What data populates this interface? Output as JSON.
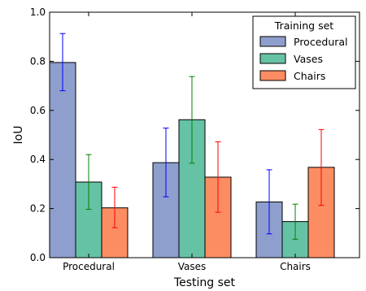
{
  "chart_data": {
    "type": "bar",
    "title": "",
    "xlabel": "Testing set",
    "ylabel": "IoU",
    "ylim": [
      0,
      1.0
    ],
    "yticks": [
      "0.0",
      "0.2",
      "0.4",
      "0.6",
      "0.8",
      "1.0"
    ],
    "categories": [
      "Procedural",
      "Vases",
      "Chairs"
    ],
    "legend": {
      "title": "Training set",
      "placement": "top-right"
    },
    "grid": false,
    "series": [
      {
        "name": "Procedural",
        "color": "#8e9fce",
        "error_color": "#0000ff",
        "values": [
          0.795,
          0.387,
          0.227
        ],
        "err_low": [
          0.68,
          0.248,
          0.097
        ],
        "err_high": [
          0.913,
          0.528,
          0.358
        ]
      },
      {
        "name": "Vases",
        "color": "#66c2a5",
        "error_color": "#008000",
        "values": [
          0.308,
          0.562,
          0.147
        ],
        "err_low": [
          0.197,
          0.385,
          0.075
        ],
        "err_high": [
          0.42,
          0.738,
          0.218
        ]
      },
      {
        "name": "Chairs",
        "color": "#fc8d62",
        "error_color": "#ff0000",
        "values": [
          0.203,
          0.328,
          0.368
        ],
        "err_low": [
          0.122,
          0.185,
          0.213
        ],
        "err_high": [
          0.287,
          0.472,
          0.522
        ]
      }
    ]
  }
}
